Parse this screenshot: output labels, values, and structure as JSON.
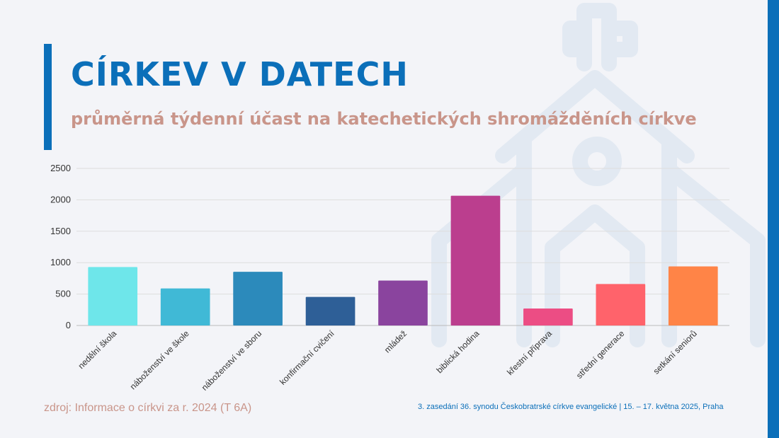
{
  "header": {
    "title": "CÍRKEV V DATECH",
    "subtitle": "průměrná týdenní účast na katechetických shromážděních církve"
  },
  "footer": {
    "source": "zdroj: Informace o církvi za r. 2024 (T 6A)",
    "event": "3. zasedání 36. synodu Českobratrské církve evangelické | 15. – 17. května 2025, Praha"
  },
  "colors": {
    "brand": "#0b6fb9",
    "subtitle": "#c9958a",
    "watermark": "#e2e9f2"
  },
  "icons": {
    "watermark": "church-icon"
  },
  "chart_data": {
    "type": "bar",
    "title": "",
    "xlabel": "",
    "ylabel": "",
    "ylim": [
      0,
      2500
    ],
    "yticks": [
      0,
      500,
      1000,
      1500,
      2000,
      2500
    ],
    "grid": true,
    "legend": "none",
    "categories": [
      "nedělní škola",
      "náboženství ve škole",
      "náboženství ve sboru",
      "konfirmační cvičení",
      "mládež",
      "biblická hodina",
      "křestní příprava",
      "střední generace",
      "setkání seniorů"
    ],
    "values": [
      930,
      590,
      855,
      455,
      715,
      2065,
      270,
      660,
      940
    ],
    "colors": [
      "#6ee6ea",
      "#40b9d6",
      "#2c8abb",
      "#2e5f97",
      "#8a449e",
      "#bb3e8e",
      "#ec4d84",
      "#ff636b",
      "#ff8447"
    ]
  }
}
